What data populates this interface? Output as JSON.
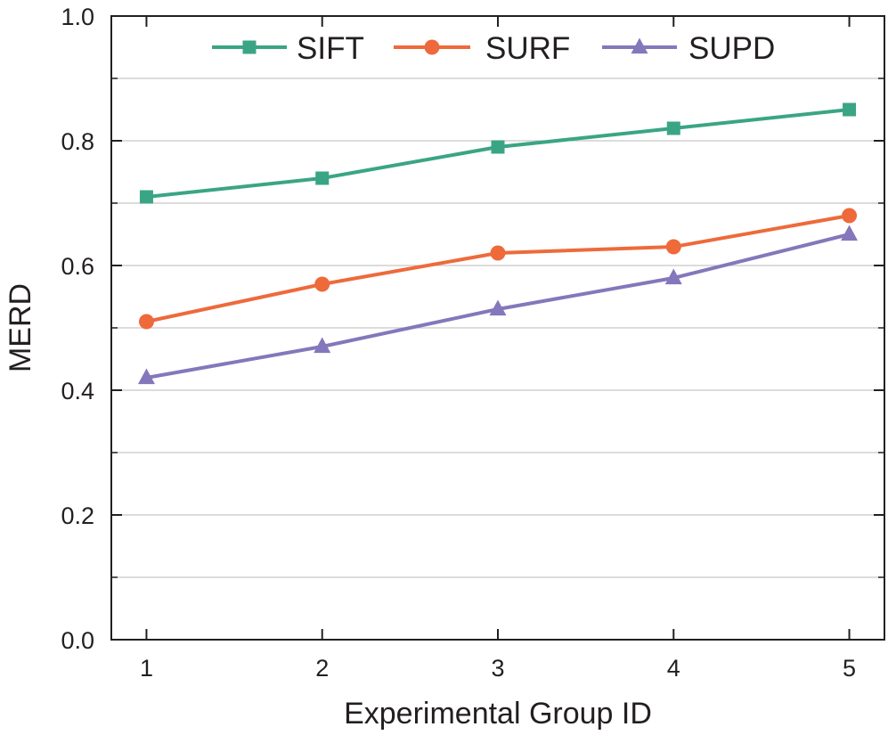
{
  "chart_data": {
    "type": "line",
    "title": "",
    "xlabel": "Experimental Group ID",
    "ylabel": "MERD",
    "x": [
      1,
      2,
      3,
      4,
      5
    ],
    "xtick_labels": [
      "1",
      "2",
      "3",
      "4",
      "5"
    ],
    "xlim": [
      0.8,
      5.2
    ],
    "ylim": [
      0.0,
      1.0
    ],
    "yticks": [
      0.0,
      0.2,
      0.4,
      0.6,
      0.8,
      1.0
    ],
    "ytick_labels": [
      "0.0",
      "0.2",
      "0.4",
      "0.6",
      "0.8",
      "1.0"
    ],
    "grid": "horizontal",
    "legend_position": "top",
    "series": [
      {
        "name": "SIFT",
        "values": [
          0.71,
          0.74,
          0.79,
          0.82,
          0.85
        ],
        "color": "#3aa584",
        "marker": "square"
      },
      {
        "name": "SURF",
        "values": [
          0.51,
          0.57,
          0.62,
          0.63,
          0.68
        ],
        "color": "#ee6a3b",
        "marker": "circle"
      },
      {
        "name": "SUPD",
        "values": [
          0.42,
          0.47,
          0.53,
          0.58,
          0.65
        ],
        "color": "#8577bb",
        "marker": "triangle"
      }
    ]
  }
}
